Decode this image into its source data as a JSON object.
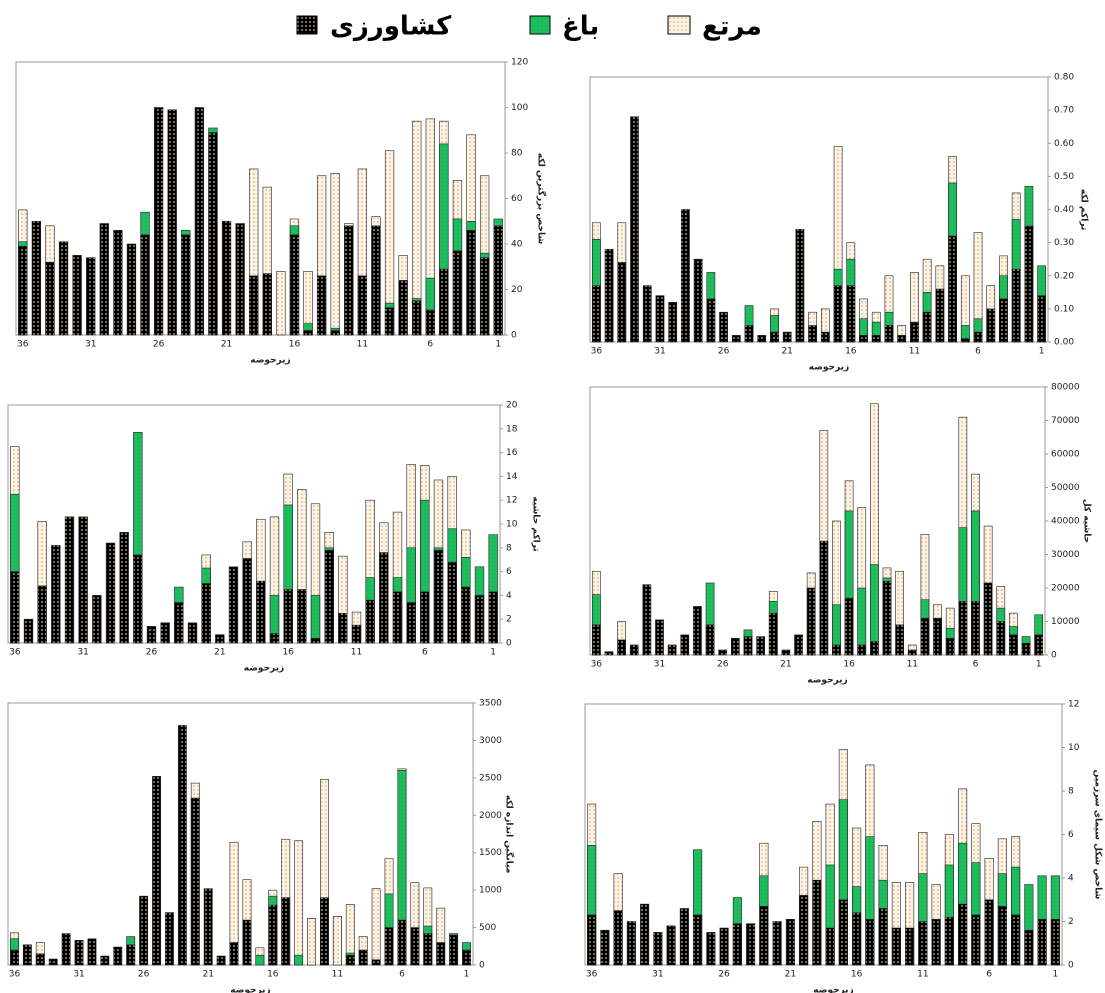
{
  "chart_data": [
    {
      "type": "bar",
      "overlap": true,
      "x_label": "زیرحوضه",
      "y_label": "شاخص بزرگترین لکه",
      "categories": [
        36,
        null,
        null,
        null,
        null,
        31,
        null,
        null,
        null,
        null,
        26,
        null,
        null,
        null,
        null,
        21,
        null,
        null,
        null,
        null,
        16,
        null,
        null,
        null,
        null,
        11,
        null,
        null,
        null,
        null,
        6,
        null,
        null,
        null,
        null,
        1
      ],
      "series": [
        {
          "name": "کشاورزی",
          "color": "#000000",
          "values": [
            39,
            50,
            32,
            41,
            35,
            34,
            49,
            46,
            40,
            44,
            100,
            99,
            44,
            100,
            89,
            50,
            49,
            26,
            27,
            0,
            44,
            2,
            26,
            2,
            48,
            26,
            48,
            12,
            24,
            15,
            11,
            29,
            37,
            46,
            34,
            48
          ]
        },
        {
          "name": "باغ",
          "color": "#1dbf5c",
          "values": [
            41,
            0,
            0,
            0,
            0,
            0,
            0,
            0,
            0,
            54,
            0,
            0,
            46,
            0,
            91,
            0,
            0,
            0,
            0,
            0,
            48,
            5,
            0,
            3,
            0,
            0,
            0,
            14,
            0,
            16,
            25,
            84,
            51,
            50,
            36,
            51
          ]
        },
        {
          "name": "مرتع",
          "color": "#fbf3e6",
          "values": [
            55,
            0,
            48,
            0,
            0,
            0,
            0,
            0,
            0,
            0,
            0,
            0,
            0,
            0,
            0,
            0,
            0,
            73,
            65,
            28,
            51,
            28,
            70,
            71,
            49,
            73,
            52,
            81,
            35,
            94,
            95,
            94,
            68,
            88,
            70,
            0
          ]
        }
      ],
      "ylim": [
        0,
        120
      ],
      "yticks": [
        0,
        20,
        40,
        60,
        80,
        100,
        120
      ]
    },
    {
      "type": "bar",
      "overlap": true,
      "x_label": "زیرحوضه",
      "y_label": "تراکم لکه",
      "categories": [
        36,
        null,
        null,
        null,
        null,
        31,
        null,
        null,
        null,
        null,
        26,
        null,
        null,
        null,
        null,
        21,
        null,
        null,
        null,
        null,
        16,
        null,
        null,
        null,
        null,
        11,
        null,
        null,
        null,
        null,
        6,
        null,
        null,
        null,
        null,
        1
      ],
      "series": [
        {
          "values": [
            0.17,
            0.28,
            0.24,
            0.68,
            0.17,
            0.14,
            0.12,
            0.4,
            0.25,
            0.13,
            0.09,
            0.02,
            0.05,
            0.02,
            0.03,
            0.03,
            0.34,
            0.05,
            0.03,
            0.17,
            0.17,
            0.02,
            0.02,
            0.05,
            0.02,
            0.06,
            0.09,
            0.16,
            0.32,
            0.01,
            0.03,
            0.1,
            0.13,
            0.22,
            0.35,
            0.14
          ]
        },
        {
          "values": [
            0.31,
            0,
            0,
            0,
            0,
            0,
            0,
            0,
            0,
            0.21,
            0,
            0,
            0.11,
            0,
            0.08,
            0,
            0,
            0,
            0,
            0.22,
            0.25,
            0.07,
            0.06,
            0.09,
            0,
            0,
            0.15,
            0,
            0.48,
            0.05,
            0.07,
            0,
            0.2,
            0.37,
            0.47,
            0.23
          ]
        },
        {
          "values": [
            0.36,
            0,
            0.36,
            0,
            0,
            0,
            0,
            0,
            0,
            0,
            0,
            0,
            0,
            0,
            0.1,
            0,
            0,
            0.09,
            0.1,
            0.59,
            0.3,
            0.13,
            0.09,
            0.2,
            0.05,
            0.21,
            0.25,
            0.23,
            0.56,
            0.2,
            0.33,
            0.17,
            0.26,
            0.45,
            0,
            0
          ]
        }
      ],
      "ylim": [
        0,
        0.8
      ],
      "yticks": [
        {
          "value": 0,
          "label": "0.00"
        },
        {
          "value": 0.1,
          "label": "0.10"
        },
        {
          "value": 0.2,
          "label": "0.20"
        },
        {
          "value": 0.3,
          "label": "0.30"
        },
        {
          "value": 0.4,
          "label": "0.40"
        },
        {
          "value": 0.5,
          "label": "0.50"
        },
        {
          "value": 0.6,
          "label": "0.60"
        },
        {
          "value": 0.7,
          "label": "0.70"
        },
        {
          "value": 0.8,
          "label": "0.80"
        }
      ]
    },
    {
      "type": "bar",
      "overlap": true,
      "x_label": "زیرحوضه",
      "y_label": "تراکم حاشیه",
      "categories": [
        36,
        null,
        null,
        null,
        null,
        31,
        null,
        null,
        null,
        null,
        26,
        null,
        null,
        null,
        null,
        21,
        null,
        null,
        null,
        null,
        16,
        null,
        null,
        null,
        null,
        11,
        null,
        null,
        null,
        null,
        6,
        null,
        null,
        null,
        null,
        1
      ],
      "series": [
        {
          "values": [
            6,
            2,
            4.8,
            8.2,
            10.6,
            10.6,
            4,
            8.4,
            9.3,
            7.4,
            1.4,
            1.7,
            3.4,
            1.7,
            5,
            0.7,
            6.4,
            7.1,
            5.2,
            0.8,
            4.5,
            4.5,
            0.4,
            7.8,
            2.5,
            1.5,
            3.6,
            7.6,
            4.3,
            3.4,
            4.3,
            7.8,
            6.8,
            4.7,
            4,
            4.3
          ]
        },
        {
          "values": [
            12.5,
            0,
            0,
            0,
            0,
            0,
            0,
            0,
            0,
            17.7,
            0,
            0,
            4.7,
            0,
            6.3,
            0,
            0,
            0,
            0,
            4,
            11.6,
            0,
            4,
            8,
            0,
            0,
            5.5,
            0,
            5.5,
            8,
            12,
            8,
            9.6,
            7.2,
            6.4,
            9.1
          ]
        },
        {
          "values": [
            16.5,
            0,
            10.2,
            0,
            0,
            0,
            0,
            0,
            0,
            0,
            0,
            0,
            0,
            0,
            7.4,
            0,
            0,
            8.5,
            10.4,
            10.6,
            14.2,
            12.9,
            11.7,
            9.3,
            7.3,
            2.6,
            12,
            10.1,
            11,
            15,
            14.9,
            13.7,
            14,
            9.5,
            0,
            0
          ]
        }
      ],
      "ylim": [
        0,
        20
      ],
      "yticks": [
        0,
        2,
        4,
        6,
        8,
        10,
        12,
        14,
        16,
        18,
        20
      ]
    },
    {
      "type": "bar",
      "overlap": true,
      "x_label": "زیرحوضه",
      "y_label": "حاشیه کل",
      "categories": [
        36,
        null,
        null,
        null,
        null,
        31,
        null,
        null,
        null,
        null,
        26,
        null,
        null,
        null,
        null,
        21,
        null,
        null,
        null,
        null,
        16,
        null,
        null,
        null,
        null,
        11,
        null,
        null,
        null,
        null,
        6,
        null,
        null,
        null,
        null,
        1
      ],
      "series": [
        {
          "values": [
            9000,
            1000,
            4500,
            3000,
            21000,
            10500,
            3000,
            6000,
            14500,
            9000,
            1500,
            5000,
            5500,
            5500,
            12500,
            1500,
            6000,
            20000,
            34000,
            3000,
            17000,
            3000,
            4000,
            22000,
            9000,
            1500,
            11000,
            11000,
            5000,
            16000,
            16000,
            21500,
            10000,
            6000,
            3500,
            6000
          ]
        },
        {
          "values": [
            18000,
            0,
            0,
            0,
            0,
            0,
            0,
            0,
            0,
            21500,
            0,
            0,
            7500,
            0,
            16000,
            0,
            0,
            0,
            0,
            15000,
            43000,
            20000,
            27000,
            23000,
            0,
            0,
            16500,
            0,
            8000,
            38000,
            43000,
            0,
            14000,
            8500,
            5500,
            12000
          ]
        },
        {
          "values": [
            25000,
            0,
            10000,
            0,
            0,
            0,
            0,
            0,
            0,
            0,
            0,
            0,
            0,
            0,
            19000,
            0,
            0,
            24500,
            67000,
            40000,
            52000,
            44000,
            75000,
            26000,
            25000,
            3000,
            36000,
            15000,
            14000,
            71000,
            54000,
            38500,
            20500,
            12500,
            0,
            0
          ]
        }
      ],
      "ylim": [
        0,
        80000
      ],
      "yticks": [
        0,
        10000,
        20000,
        30000,
        40000,
        50000,
        60000,
        70000,
        80000
      ]
    },
    {
      "type": "bar",
      "overlap": true,
      "x_label": "زیرحوضه",
      "y_label": "میانگین اندازه لکه",
      "categories": [
        36,
        null,
        null,
        null,
        null,
        31,
        null,
        null,
        null,
        null,
        26,
        null,
        null,
        null,
        null,
        21,
        null,
        null,
        null,
        null,
        16,
        null,
        null,
        null,
        null,
        11,
        null,
        null,
        null,
        null,
        6,
        null,
        null,
        null,
        null,
        1
      ],
      "series": [
        {
          "values": [
            200,
            270,
            150,
            80,
            420,
            330,
            350,
            120,
            240,
            270,
            920,
            2520,
            700,
            3200,
            2230,
            1020,
            120,
            300,
            600,
            0,
            800,
            900,
            0,
            620,
            900,
            650,
            130,
            200,
            70,
            500,
            600,
            500,
            420,
            300,
            400,
            200
          ]
        },
        {
          "values": [
            350,
            0,
            0,
            0,
            0,
            0,
            0,
            0,
            0,
            380,
            0,
            0,
            0,
            0,
            0,
            0,
            0,
            0,
            0,
            130,
            920,
            0,
            130,
            0,
            0,
            0,
            160,
            0,
            0,
            950,
            2600,
            0,
            520,
            0,
            420,
            300
          ]
        },
        {
          "values": [
            430,
            0,
            300,
            0,
            0,
            0,
            0,
            0,
            0,
            0,
            0,
            0,
            0,
            0,
            2430,
            0,
            0,
            1640,
            1140,
            230,
            1000,
            1680,
            1660,
            620,
            2480,
            650,
            810,
            380,
            1020,
            1420,
            2620,
            1100,
            1030,
            760,
            0,
            0
          ]
        }
      ],
      "ylim": [
        0,
        3500
      ],
      "yticks": [
        0,
        500,
        1000,
        1500,
        2000,
        2500,
        3000,
        3500
      ]
    },
    {
      "type": "bar",
      "overlap": true,
      "x_label": "زیرحوضه",
      "y_label": "شاخص شکل سیمای سرزمین",
      "categories": [
        36,
        null,
        null,
        null,
        null,
        31,
        null,
        null,
        null,
        null,
        26,
        null,
        null,
        null,
        null,
        21,
        null,
        null,
        null,
        null,
        16,
        null,
        null,
        null,
        null,
        11,
        null,
        null,
        null,
        null,
        6,
        null,
        null,
        null,
        null,
        1
      ],
      "series": [
        {
          "values": [
            2.3,
            1.6,
            2.5,
            2,
            2.8,
            1.5,
            1.8,
            2.6,
            2.3,
            1.5,
            1.7,
            1.9,
            1.9,
            2.7,
            2,
            2.1,
            3.2,
            3.9,
            1.7,
            3,
            2.4,
            2.1,
            2.6,
            1.7,
            1.7,
            2,
            2.1,
            2.2,
            2.8,
            2.3,
            3,
            2.7,
            2.3,
            1.6,
            2.1,
            2.1
          ]
        },
        {
          "values": [
            5.5,
            0,
            0,
            0,
            0,
            0,
            0,
            0,
            5.3,
            0,
            0,
            3.1,
            0,
            4.1,
            0,
            0,
            0,
            0,
            4.6,
            7.6,
            3.6,
            5.9,
            3.9,
            0,
            0,
            4.2,
            0,
            4.6,
            5.6,
            4.7,
            0,
            4.2,
            4.5,
            3.7,
            4.1,
            4.1
          ]
        },
        {
          "values": [
            7.4,
            0,
            4.2,
            0,
            0,
            0,
            0,
            0,
            0,
            0,
            0,
            0,
            0,
            5.6,
            0,
            0,
            4.5,
            6.6,
            7.4,
            9.9,
            6.3,
            9.2,
            5.5,
            3.8,
            3.8,
            6.1,
            3.7,
            6,
            8.1,
            6.5,
            4.9,
            5.8,
            5.9,
            0,
            0,
            0
          ]
        }
      ],
      "ylim": [
        0,
        12
      ],
      "yticks": [
        0,
        2,
        4,
        6,
        8,
        10,
        12
      ]
    }
  ]
}
